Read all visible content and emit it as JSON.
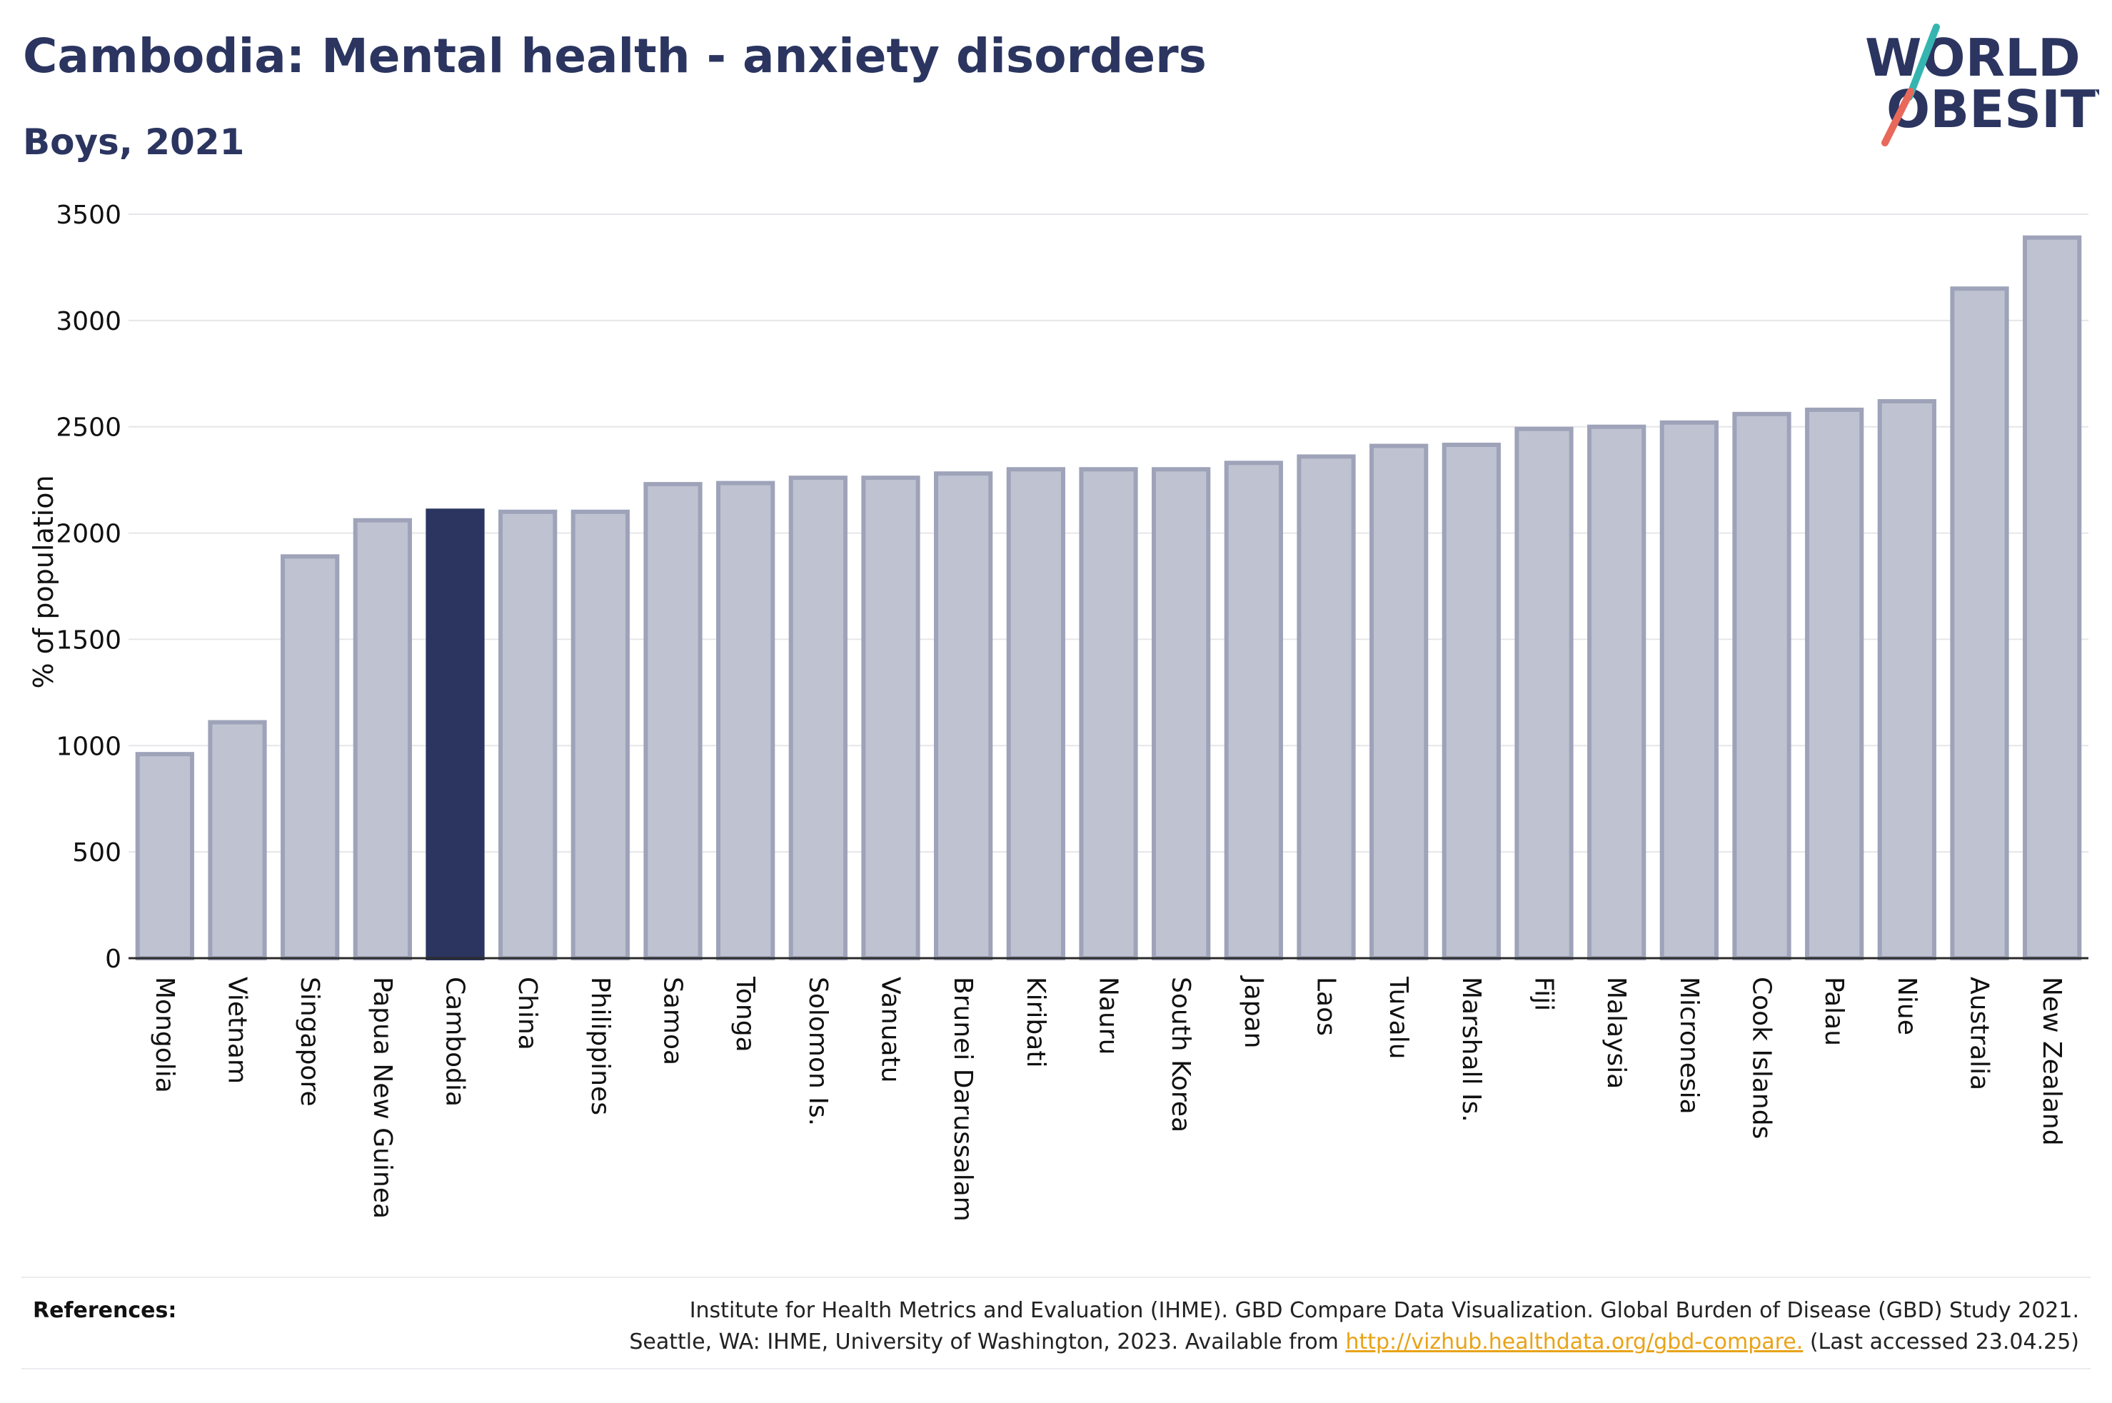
{
  "header": {
    "title": "Cambodia: Mental health - anxiety disorders",
    "subtitle": "Boys, 2021"
  },
  "logo": {
    "line1": "WORLD",
    "line2": "OBESITY",
    "text_color": "#2b3560",
    "slash_colors": [
      "#36b5b0",
      "#e8685a"
    ]
  },
  "colors": {
    "bar_default": "#bfc3d1",
    "bar_stroke": "#9ea3b9",
    "bar_highlight": "#2b3560",
    "text": "#2b3560"
  },
  "chart_data": {
    "type": "bar",
    "ylabel": "% of population",
    "ylim": [
      0,
      3500
    ],
    "yticks": [
      0,
      500,
      1000,
      1500,
      2000,
      2500,
      3000,
      3500
    ],
    "grid": true,
    "highlight": "Cambodia",
    "categories": [
      "Mongolia",
      "Vietnam",
      "Singapore",
      "Papua New Guinea",
      "Cambodia",
      "China",
      "Philippines",
      "Samoa",
      "Tonga",
      "Solomon Is.",
      "Vanuatu",
      "Brunei Darussalam",
      "Kiribati",
      "Nauru",
      "South Korea",
      "Japan",
      "Laos",
      "Tuvalu",
      "Marshall Is.",
      "Fiji",
      "Malaysia",
      "Micronesia",
      "Cook Islands",
      "Palau",
      "Niue",
      "Australia",
      "New Zealand"
    ],
    "values": [
      960,
      1110,
      1890,
      2060,
      2105,
      2100,
      2100,
      2230,
      2235,
      2260,
      2260,
      2280,
      2300,
      2300,
      2300,
      2330,
      2360,
      2410,
      2415,
      2490,
      2500,
      2520,
      2560,
      2580,
      2620,
      3150,
      3390
    ]
  },
  "references": {
    "label": "References:",
    "line1": "Institute for Health Metrics and Evaluation (IHME). GBD Compare Data Visualization. Global Burden of Disease (GBD) Study 2021.",
    "line2_prefix": "Seattle, WA: IHME, University of Washington, 2023. Available from ",
    "link_text": "http://vizhub.healthdata.org/gbd-compare.",
    "line2_suffix": " (Last accessed 23.04.25)"
  }
}
